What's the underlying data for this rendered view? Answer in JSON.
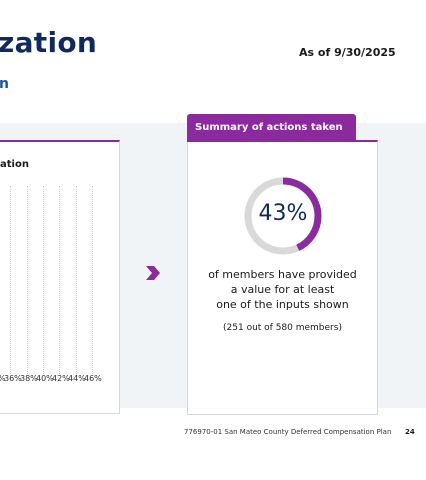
{
  "header": {
    "title": "zation",
    "subtitle": "n",
    "as_of": "As of 9/30/2025"
  },
  "left_panel": {
    "title": "ation",
    "x_ticks": [
      "36%",
      "38%",
      "40%",
      "42%",
      "44%",
      "46%"
    ],
    "leading_fragment": "%"
  },
  "summary": {
    "tab_label": "Summary of actions taken",
    "percent_value": 43,
    "percent_label": "43%",
    "description_lines": [
      "of members have provided",
      "a value for at least",
      "one of the inputs shown"
    ],
    "count_text": "(251 out of 580 members)"
  },
  "footer": {
    "document": "776970-01 San Mateo County Deferred Compensation Plan",
    "page": "24"
  },
  "colors": {
    "accent_purple": "#8b2a9f",
    "navy": "#0f2a5c",
    "link_blue": "#1a56a8",
    "donut_track": "#d9d9d9",
    "band_bg": "#f1f4f6"
  },
  "icons": {
    "arrow": "chevron-right-icon"
  }
}
